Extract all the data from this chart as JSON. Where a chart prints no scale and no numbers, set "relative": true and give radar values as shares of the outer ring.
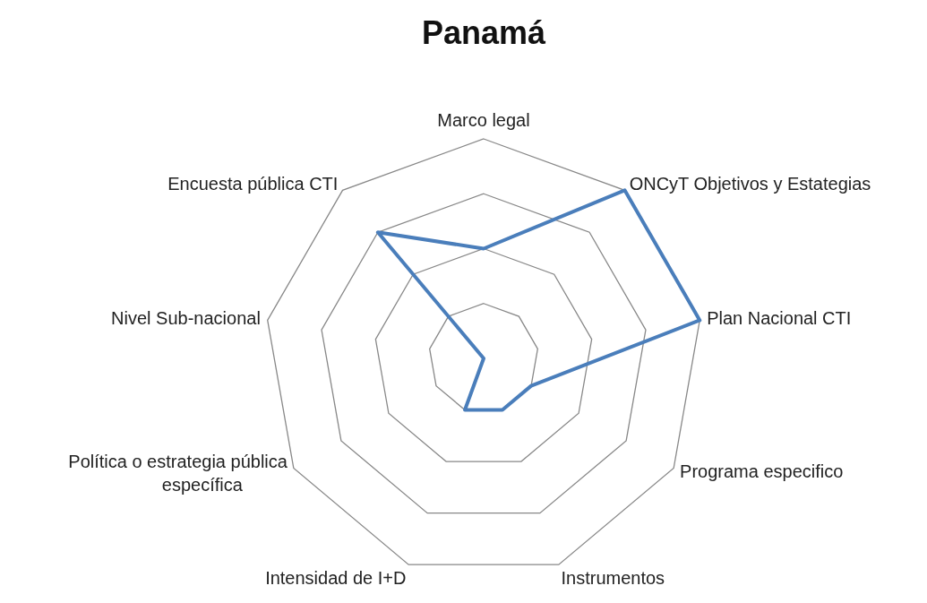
{
  "chart_data": {
    "type": "radar",
    "title": "Panamá",
    "relative": true,
    "grid": true,
    "categories": [
      "Marco legal",
      "ONCyT Objetivos y Estategias",
      "Plan Nacional CTI",
      "Programa especifico",
      "Instrumentos",
      "Intensidad de I+D",
      "Política o estrategia pública específica",
      "Nivel Sub-nacional",
      "Encuesta pública CTI"
    ],
    "series": [
      {
        "color": "#4a7ebb",
        "values": [
          0.5,
          1,
          1,
          0.25,
          0.25,
          0.25,
          0,
          0,
          0.75
        ]
      }
    ]
  }
}
